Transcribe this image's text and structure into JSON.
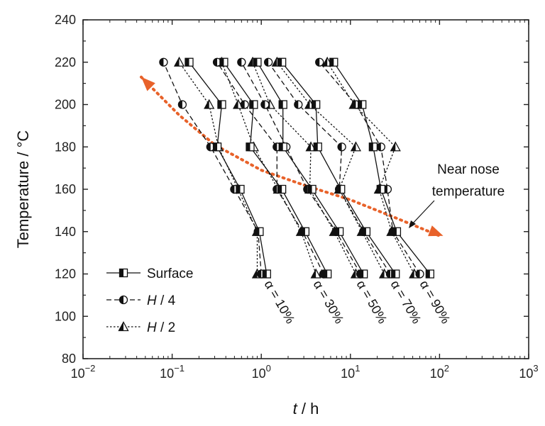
{
  "chart_data": {
    "type": "line",
    "xlabel_italic": "t",
    "xlabel_rest": " / h",
    "ylabel": "Temperature / °C",
    "xscale": "log",
    "xlim": [
      0.01,
      1000
    ],
    "ylim": [
      80,
      240
    ],
    "x_ticks": [
      {
        "base": "10",
        "exp": "−2",
        "value": 0.01
      },
      {
        "base": "10",
        "exp": "−1",
        "value": 0.1
      },
      {
        "base": "10",
        "exp": "0",
        "value": 1
      },
      {
        "base": "10",
        "exp": "1",
        "value": 10
      },
      {
        "base": "10",
        "exp": "2",
        "value": 100
      },
      {
        "base": "10",
        "exp": "3",
        "value": 1000
      }
    ],
    "y_ticks": [
      "80",
      "100",
      "120",
      "140",
      "160",
      "180",
      "200",
      "220",
      "240"
    ],
    "temperatures": [
      120,
      140,
      160,
      180,
      200,
      220
    ],
    "legend": [
      {
        "key": "surface",
        "label": "Surface",
        "italic": "",
        "rest": "Surface"
      },
      {
        "key": "h4",
        "label": "H / 4",
        "italic": "H",
        "rest": " / 4"
      },
      {
        "key": "h2",
        "label": "H / 2",
        "italic": "H",
        "rest": " / 2"
      }
    ],
    "curves": [
      {
        "label": "α = 10%",
        "surface": [
          1.15,
          0.95,
          0.58,
          0.32,
          0.36,
          0.155
        ],
        "h4": [
          1.0,
          0.92,
          0.5,
          0.27,
          0.13,
          0.08
        ],
        "h2": [
          0.9,
          0.9,
          0.55,
          0.33,
          0.26,
          0.12
        ]
      },
      {
        "label": "α = 30%",
        "surface": [
          5.5,
          3.1,
          1.7,
          0.75,
          0.82,
          0.38
        ],
        "h4": [
          5.0,
          2.9,
          1.5,
          1.5,
          0.65,
          0.32
        ],
        "h2": [
          4.1,
          2.8,
          1.55,
          0.82,
          0.55,
          0.36
        ]
      },
      {
        "label": "α = 50%",
        "surface": [
          14,
          7.5,
          3.7,
          1.75,
          1.75,
          0.9
        ],
        "h4": [
          13,
          6.9,
          3.3,
          1.9,
          1.1,
          0.6
        ],
        "h2": [
          11.5,
          6.6,
          3.5,
          3.6,
          1.25,
          0.8
        ]
      },
      {
        "label": "α = 70%",
        "surface": [
          32,
          15,
          7.8,
          4.3,
          4.1,
          1.7
        ],
        "h4": [
          28,
          14,
          7.5,
          8.0,
          2.6,
          1.2
        ],
        "h2": [
          24,
          13.5,
          7.5,
          11.5,
          3.5,
          1.5
        ]
      },
      {
        "label": "α = 90%",
        "surface": [
          78,
          33,
          22,
          18,
          13.5,
          6.5
        ],
        "h4": [
          60,
          30,
          26,
          22,
          11.5,
          4.5
        ],
        "h2": [
          52,
          29,
          21,
          32,
          11,
          5.5
        ]
      }
    ],
    "annotation": {
      "line1": "Near nose",
      "line2": "temperature",
      "color": "#E8622A",
      "trend": [
        [
          0.045,
          213
        ],
        [
          0.12,
          195
        ],
        [
          0.3,
          181
        ],
        [
          1.0,
          169
        ],
        [
          3.0,
          162
        ],
        [
          10,
          155
        ],
        [
          30,
          147
        ],
        [
          100,
          138
        ]
      ]
    }
  }
}
